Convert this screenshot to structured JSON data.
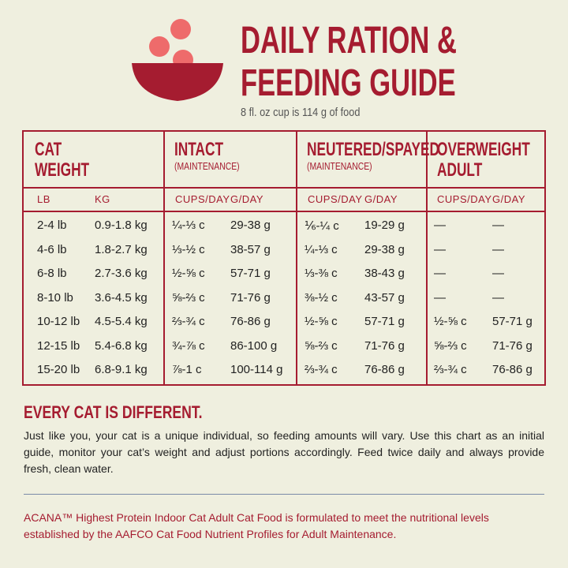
{
  "header": {
    "title": [
      "DAILY RATION &",
      "FEEDING GUIDE"
    ],
    "subtitle": "8 fl. oz cup is 114 g of food"
  },
  "table": {
    "groups": [
      {
        "title": [
          "CAT",
          "WEIGHT"
        ],
        "note": null
      },
      {
        "title": [
          "INTACT"
        ],
        "note": "(MAINTENANCE)"
      },
      {
        "title": [
          "NEUTERED/SPAYED"
        ],
        "note": "(MAINTENANCE)"
      },
      {
        "title": [
          "OVERWEIGHT",
          "ADULT"
        ],
        "note": null
      }
    ],
    "columns": [
      "LB",
      "KG",
      "CUPS/DAY",
      "G/DAY",
      "CUPS/DAY",
      "G/DAY",
      "CUPS/DAY",
      "G/DAY"
    ],
    "rows": [
      [
        "2-4 lb",
        "0.9-1.8 kg",
        "¼-⅓ c",
        "29-38 g",
        "⅙-¼ c",
        "19-29 g",
        "—",
        "—"
      ],
      [
        "4-6 lb",
        "1.8-2.7 kg",
        "⅓-½ c",
        "38-57 g",
        "¼-⅓ c",
        "29-38 g",
        "—",
        "—"
      ],
      [
        "6-8 lb",
        "2.7-3.6 kg",
        "½-⅝ c",
        "57-71 g",
        "⅓-⅜ c",
        "38-43 g",
        "—",
        "—"
      ],
      [
        "8-10 lb",
        "3.6-4.5 kg",
        "⅝-⅔ c",
        "71-76 g",
        "⅜-½ c",
        "43-57 g",
        "—",
        "—"
      ],
      [
        "10-12 lb",
        "4.5-5.4 kg",
        "⅔-¾ c",
        "76-86 g",
        "½-⅝ c",
        "57-71 g",
        "½-⅝ c",
        "57-71 g"
      ],
      [
        "12-15 lb",
        "5.4-6.8 kg",
        "¾-⅞ c",
        "86-100 g",
        "⅝-⅔ c",
        "71-76 g",
        "⅝-⅔ c",
        "71-76 g"
      ],
      [
        "15-20 lb",
        "6.8-9.1 kg",
        "⅞-1 c",
        "100-114 g",
        "⅔-¾ c",
        "76-86 g",
        "⅔-¾ c",
        "76-86 g"
      ]
    ]
  },
  "notes": {
    "heading": "EVERY CAT IS DIFFERENT.",
    "body": "Just like you, your cat is a unique individual, so feeding amounts will vary. Use this chart as an initial guide, monitor your cat’s weight and adjust portions accordingly. Feed twice daily and always provide fresh, clean water.",
    "footer": "ACANA™ Highest Protein Indoor Cat Adult Cat Food is formulated to meet the nutritional levels established by the AAFCO Cat Food Nutrient Profiles for Adult Maintenance."
  }
}
